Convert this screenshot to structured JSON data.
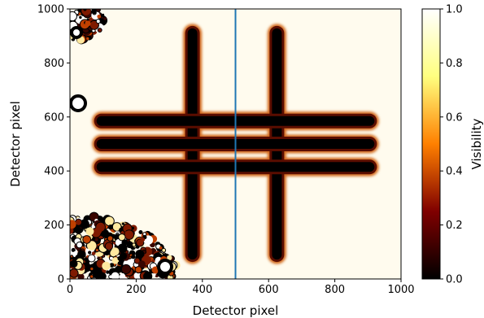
{
  "chart_data": {
    "type": "heatmap",
    "title": "",
    "xlabel": "Detector pixel",
    "ylabel": "Detector pixel",
    "xlim": [
      0,
      1000
    ],
    "ylim": [
      0,
      1000
    ],
    "xticks": [
      0,
      200,
      400,
      600,
      800,
      1000
    ],
    "yticks": [
      0,
      200,
      400,
      600,
      800,
      1000
    ],
    "grid": false,
    "colormap": "afmhot",
    "colorbar": {
      "label": "Visibility",
      "range": [
        0.0,
        1.0
      ],
      "ticks": [
        "0.0",
        "0.2",
        "0.4",
        "0.6",
        "0.8",
        "1.0"
      ],
      "tick_values": [
        0.0,
        0.2,
        0.4,
        0.6,
        0.8,
        1.0
      ]
    },
    "background_value": 1.0,
    "low_visibility_features": [
      {
        "kind": "vertical-bar",
        "x": 370,
        "y_range": [
          90,
          910
        ],
        "value": 0.0
      },
      {
        "kind": "vertical-bar",
        "x": 625,
        "y_range": [
          90,
          910
        ],
        "value": 0.0
      },
      {
        "kind": "horizontal-bar",
        "y": 585,
        "x_range": [
          95,
          905
        ],
        "value": 0.0
      },
      {
        "kind": "horizontal-bar",
        "y": 500,
        "x_range": [
          95,
          905
        ],
        "value": 0.0
      },
      {
        "kind": "horizontal-bar",
        "y": 415,
        "x_range": [
          95,
          905
        ],
        "value": 0.0
      }
    ],
    "noisy_regions": [
      {
        "corner": "top-left",
        "x_range": [
          0,
          110
        ],
        "y_range": [
          880,
          1000
        ]
      },
      {
        "corner": "bottom-left",
        "x_range": [
          0,
          320
        ],
        "y_range": [
          0,
          230
        ]
      }
    ],
    "lines": [
      {
        "orientation": "vertical",
        "x": 500,
        "color": "#1f77b4"
      }
    ]
  }
}
